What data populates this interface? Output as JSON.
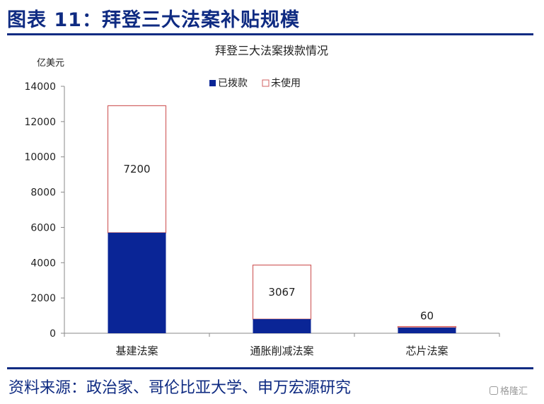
{
  "figure_title": "图表 11：拜登三大法案补贴规模",
  "source_note": "资料来源：政治家、哥伦比亚大学、申万宏源研究",
  "watermark_text": "格隆汇",
  "colors": {
    "brand_blue": "#0f2b82",
    "bar_fill": "#0a2596",
    "unused_outline": "#d26262",
    "axis": "#888888"
  },
  "chart_data": {
    "type": "bar",
    "stacked": true,
    "title": "拜登三大法案拨款情况",
    "ylabel": "亿美元",
    "xlabel": "",
    "ylim": [
      0,
      14000
    ],
    "yticks": [
      0,
      2000,
      4000,
      6000,
      8000,
      10000,
      12000,
      14000
    ],
    "grid": false,
    "legend_position": "top",
    "categories": [
      "基建法案",
      "通胀削减法案",
      "芯片法案"
    ],
    "series": [
      {
        "name": "已拨款",
        "values": [
          5700,
          800,
          320
        ],
        "style": "filled"
      },
      {
        "name": "未使用",
        "values": [
          7200,
          3067,
          60
        ],
        "style": "outline",
        "labels": [
          "7200",
          "3067",
          "60"
        ]
      }
    ]
  }
}
